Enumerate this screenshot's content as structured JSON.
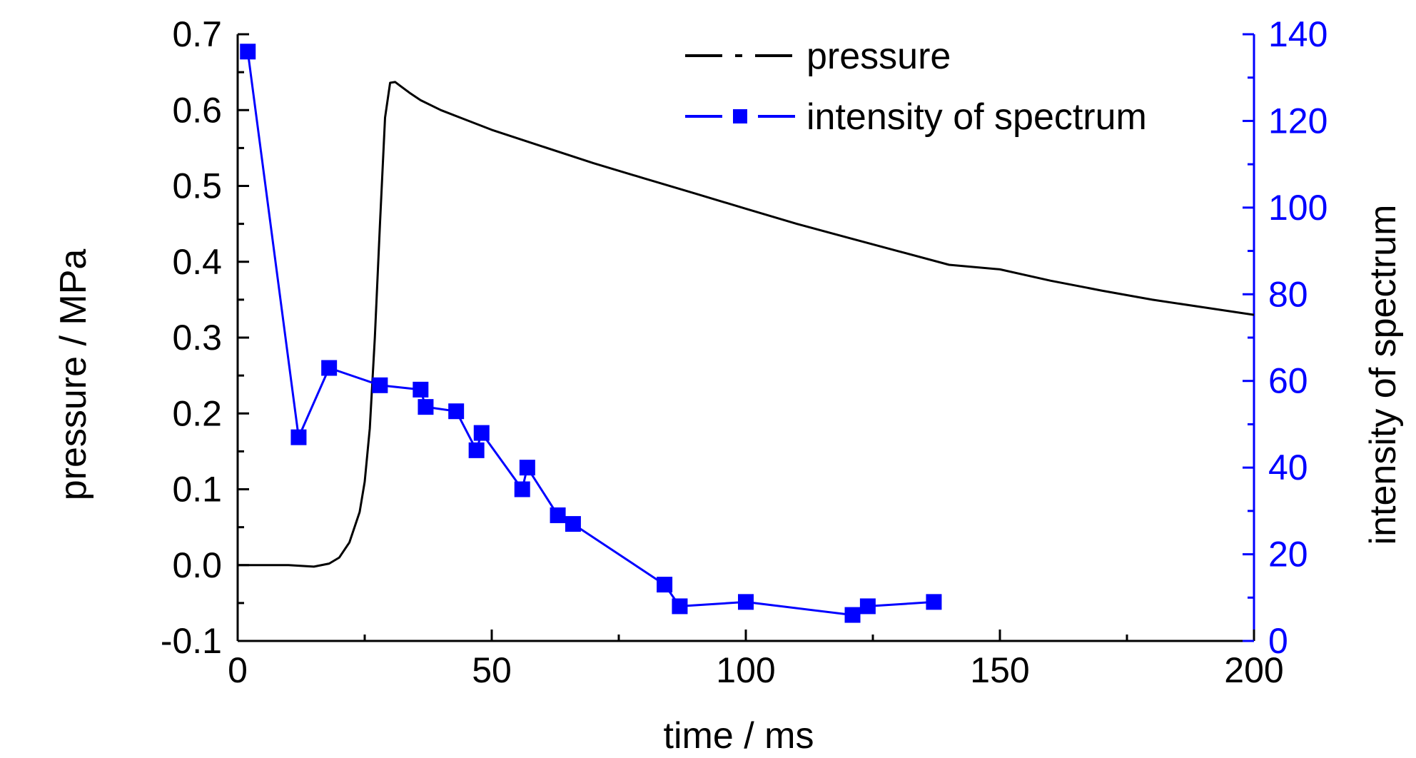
{
  "chart_data": {
    "type": "line",
    "xlabel": "time / ms",
    "ylabel_left": "pressure / MPa",
    "ylabel_right": "intensity of spectrum",
    "xlim": [
      0,
      200
    ],
    "ylim_left": [
      -0.1,
      0.7
    ],
    "ylim_right": [
      0,
      140
    ],
    "xticks": [
      0,
      50,
      100,
      150,
      200
    ],
    "xtick_labels": [
      "0",
      "50",
      "100",
      "150",
      "200"
    ],
    "yticks_left": [
      -0.1,
      0.0,
      0.1,
      0.2,
      0.3,
      0.4,
      0.5,
      0.6,
      0.7
    ],
    "ytick_labels_left": [
      "-0.1",
      "0.0",
      "0.1",
      "0.2",
      "0.3",
      "0.4",
      "0.5",
      "0.6",
      "0.7"
    ],
    "yticks_right": [
      0,
      20,
      40,
      60,
      80,
      100,
      120,
      140
    ],
    "ytick_labels_right": [
      "0",
      "20",
      "40",
      "60",
      "80",
      "100",
      "120",
      "140"
    ],
    "grid": false,
    "legend_position": "top-center",
    "series": [
      {
        "name": "pressure",
        "axis": "left",
        "color": "#000000",
        "marker": "none",
        "x": [
          0,
          5,
          10,
          15,
          18,
          20,
          22,
          24,
          25,
          26,
          27,
          28,
          29,
          30,
          31,
          32,
          34,
          36,
          40,
          45,
          50,
          60,
          70,
          80,
          90,
          100,
          110,
          120,
          130,
          140,
          150,
          160,
          170,
          180,
          190,
          200
        ],
        "y": [
          0.0,
          0.0,
          0.0,
          -0.002,
          0.002,
          0.01,
          0.03,
          0.07,
          0.11,
          0.18,
          0.3,
          0.45,
          0.59,
          0.636,
          0.637,
          0.632,
          0.622,
          0.613,
          0.6,
          0.587,
          0.574,
          0.552,
          0.53,
          0.51,
          0.49,
          0.47,
          0.45,
          0.432,
          0.414,
          0.396,
          0.39,
          0.375,
          0.362,
          0.35,
          0.34,
          0.33
        ]
      },
      {
        "name": "intensity of spectrum",
        "axis": "right",
        "color": "#0000ff",
        "marker": "square",
        "x": [
          2,
          12,
          18,
          28,
          36,
          37,
          43,
          47,
          48,
          56,
          57,
          63,
          66,
          84,
          87,
          100,
          121,
          124,
          137
        ],
        "y": [
          136,
          47,
          63,
          59,
          58,
          54,
          53,
          44,
          48,
          35,
          40,
          29,
          27,
          13,
          8,
          9,
          6,
          8,
          9
        ]
      }
    ]
  }
}
